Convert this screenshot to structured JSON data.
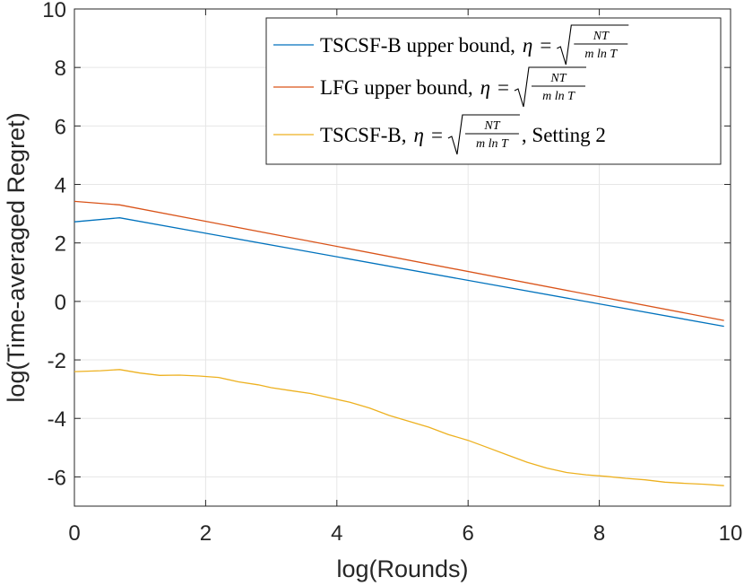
{
  "chart_data": {
    "type": "line",
    "title": "",
    "xlabel": "log(Rounds)",
    "ylabel": "log(Time-averaged Regret)",
    "xlim": [
      0,
      10
    ],
    "ylim": [
      -7,
      10
    ],
    "xticks": [
      "0",
      "2",
      "4",
      "6",
      "8",
      "10"
    ],
    "yticks": [
      "-6",
      "-4",
      "-2",
      "0",
      "2",
      "4",
      "6",
      "8",
      "10"
    ],
    "grid": true,
    "legend_position": "top-right",
    "series": [
      {
        "name": "TSCSF-B upper bound",
        "legend_prefix": "TSCSF-B upper bound,",
        "legend_suffix": "",
        "color": "#0072BD",
        "x": [
          0,
          0.69,
          9.9
        ],
        "y": [
          2.72,
          2.86,
          -0.85
        ]
      },
      {
        "name": "LFG upper bound",
        "legend_prefix": "LFG upper bound,",
        "legend_suffix": "",
        "color": "#D95319",
        "x": [
          0,
          0.69,
          9.9
        ],
        "y": [
          3.42,
          3.3,
          -0.65
        ]
      },
      {
        "name": "TSCSF-B, Setting 2",
        "legend_prefix": "TSCSF-B,",
        "legend_suffix": ", Setting 2",
        "color": "#EDB120",
        "x": [
          0,
          0.4,
          0.69,
          1.0,
          1.3,
          1.6,
          1.9,
          2.2,
          2.5,
          2.8,
          3.0,
          3.3,
          3.6,
          3.9,
          4.2,
          4.5,
          4.8,
          5.1,
          5.4,
          5.7,
          6.0,
          6.3,
          6.6,
          6.9,
          7.2,
          7.5,
          7.8,
          8.1,
          8.4,
          8.7,
          9.0,
          9.3,
          9.6,
          9.9
        ],
        "y": [
          -2.4,
          -2.37,
          -2.33,
          -2.45,
          -2.53,
          -2.52,
          -2.55,
          -2.6,
          -2.75,
          -2.85,
          -2.95,
          -3.05,
          -3.15,
          -3.3,
          -3.45,
          -3.65,
          -3.9,
          -4.1,
          -4.3,
          -4.55,
          -4.75,
          -5.0,
          -5.25,
          -5.5,
          -5.7,
          -5.85,
          -5.93,
          -5.98,
          -6.05,
          -6.1,
          -6.18,
          -6.22,
          -6.25,
          -6.3
        ]
      }
    ],
    "eta_formula": {
      "eta": "η",
      "equals": "=",
      "numerator": "NT",
      "denominator": "m ln T"
    }
  }
}
